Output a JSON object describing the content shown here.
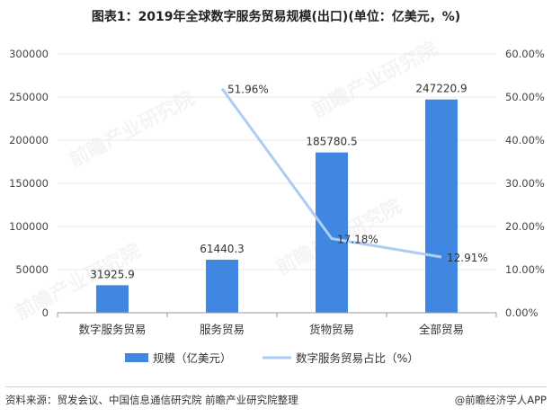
{
  "title": "图表1：2019年全球数字服务贸易规模(出口)(单位：亿美元，%)",
  "source": "资料来源：贸发会议、中国信息通信研究院 前瞻产业研究院整理",
  "brand": "@前瞻经济学人APP",
  "watermark": "前瞻产业研究院",
  "colors": {
    "bar": "#3f87e0",
    "line": "#aecdf2",
    "axis": "#999999",
    "grid": "#e9e9e9"
  },
  "chart_data": {
    "type": "bar",
    "categories": [
      "数字服务贸易",
      "服务贸易",
      "货物贸易",
      "全部贸易"
    ],
    "series": [
      {
        "name": "规模（亿美元）",
        "type": "bar",
        "axis": "left",
        "values": [
          31925.9,
          61440.3,
          185780.5,
          247220.9
        ],
        "labels": [
          "31925.9",
          "61440.3",
          "185780.5",
          "247220.9"
        ]
      },
      {
        "name": "数字服务贸易占比（%）",
        "type": "line",
        "axis": "right",
        "values": [
          null,
          51.96,
          17.18,
          12.91
        ],
        "labels": [
          "",
          "51.96%",
          "17.18%",
          "12.91%"
        ]
      }
    ],
    "y_left": {
      "min": 0,
      "max": 300000,
      "ticks": [
        "0",
        "50000",
        "100000",
        "150000",
        "200000",
        "250000",
        "300000"
      ]
    },
    "y_right": {
      "min": 0,
      "max": 60,
      "ticks": [
        "0.00%",
        "10.00%",
        "20.00%",
        "30.00%",
        "40.00%",
        "50.00%",
        "60.00%"
      ]
    },
    "legend_position": "bottom"
  }
}
